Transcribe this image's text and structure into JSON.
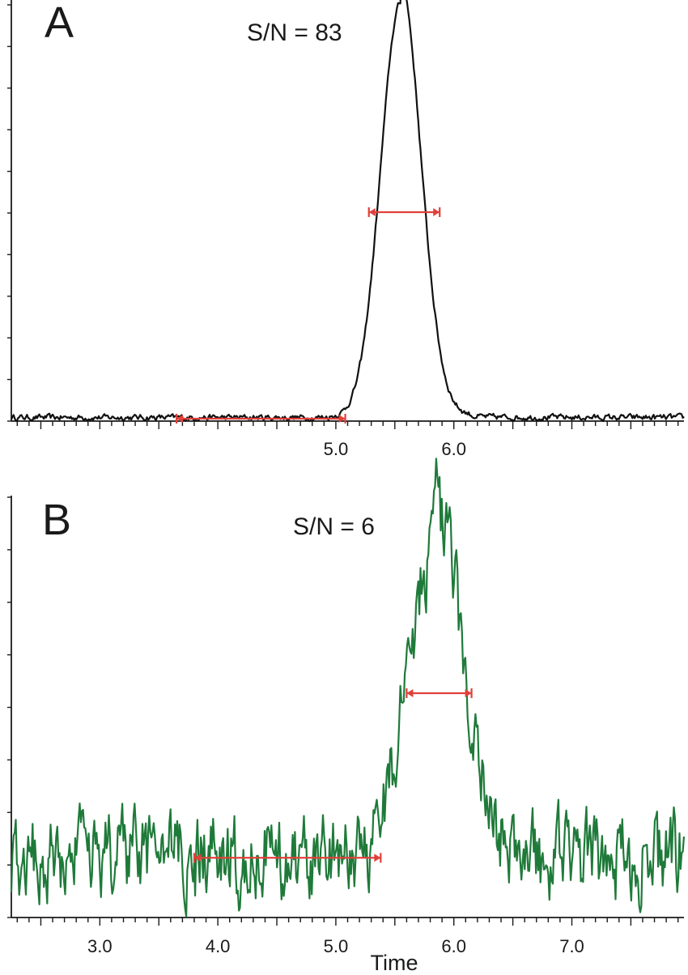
{
  "chart_data": [
    {
      "type": "line",
      "panel": "A",
      "annotation": "S/N = 83",
      "color": "#111111",
      "xlim": [
        2.25,
        7.95
      ],
      "ylim": [
        0,
        100
      ],
      "x_ticks": [
        {
          "value": 5.0,
          "label": "5.0"
        },
        {
          "value": 6.0,
          "label": "6.0"
        }
      ],
      "y_tick_count": 10,
      "peak": {
        "center": 5.55,
        "height": 100,
        "fwhm": 0.4
      },
      "baseline_noise_amplitude": 1.2,
      "brackets": [
        {
          "role": "peak-width",
          "x_start": 5.28,
          "x_end": 5.88,
          "y": 50
        },
        {
          "role": "noise-region",
          "x_start": 3.65,
          "x_end": 5.08,
          "y": 0.2
        }
      ],
      "xlabel": "",
      "ylabel": ""
    },
    {
      "type": "line",
      "panel": "B",
      "annotation": "S/N = 6",
      "color": "#1f7a3a",
      "xlim": [
        2.25,
        7.95
      ],
      "ylim": [
        0,
        100
      ],
      "x_ticks": [
        {
          "value": 3.0,
          "label": "3.0"
        },
        {
          "value": 4.0,
          "label": "4.0"
        },
        {
          "value": 5.0,
          "label": "5.0"
        },
        {
          "value": 6.0,
          "label": "6.0"
        },
        {
          "value": 7.0,
          "label": "7.0"
        }
      ],
      "y_tick_count": 8,
      "peak": {
        "center": 5.85,
        "height": 82,
        "fwhm": 0.55
      },
      "baseline_noise_amplitude": 10,
      "brackets": [
        {
          "role": "peak-width",
          "x_start": 5.6,
          "x_end": 6.15,
          "y": 50
        },
        {
          "role": "noise-region",
          "x_start": 3.8,
          "x_end": 5.38,
          "y": 8
        }
      ],
      "xlabel": "Time",
      "ylabel": ""
    }
  ]
}
